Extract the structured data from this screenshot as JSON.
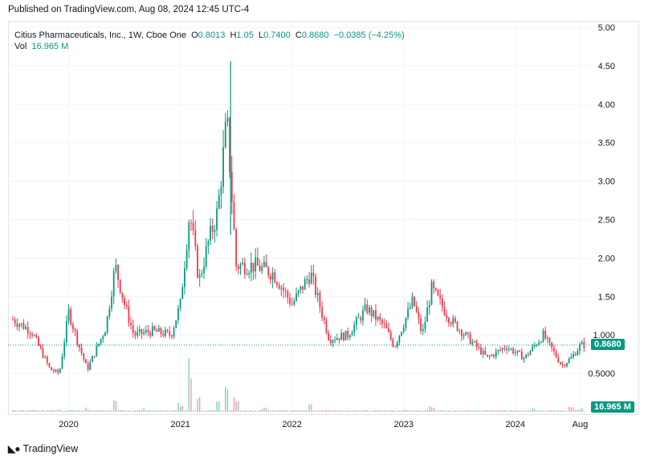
{
  "header": {
    "published": "Published on TradingView.com, Aug 08, 2024 12:45 UTC-4"
  },
  "legend": {
    "symbol": "Citius Pharmaceuticals, Inc., 1W, Cboe One",
    "o_label": "O",
    "o": "0.8013",
    "h_label": "H",
    "h": "1.05",
    "l_label": "L",
    "l": "0.7400",
    "c_label": "C",
    "c": "0.8680",
    "change": "−0.0385 (−4.25%)",
    "vol_label": "Vol",
    "vol": "16.965 M"
  },
  "price_badge": "0.8680",
  "volume_badge": "16.965 M",
  "footer": {
    "brand": "TradingView"
  },
  "colors": {
    "up": "#089981",
    "down": "#f23645",
    "grid": "#f0f3fa",
    "text": "#131722"
  },
  "chart_data": {
    "type": "candlestick",
    "ylim": [
      0.0,
      5.0
    ],
    "y_ticks": [
      "5.00",
      "4.50",
      "4.00",
      "3.50",
      "3.00",
      "2.50",
      "2.00",
      "1.50",
      "1.000",
      "0.5000"
    ],
    "x_ticks": [
      "2020",
      "2021",
      "2022",
      "2023",
      "2024",
      "Aug"
    ],
    "last_close": 0.868,
    "series": [
      {
        "name": "Price",
        "points": [
          {
            "t": "2019-07",
            "v": 1.2
          },
          {
            "t": "2019-09",
            "v": 1.05
          },
          {
            "t": "2019-11",
            "v": 0.55
          },
          {
            "t": "2019-12",
            "v": 0.5
          },
          {
            "t": "2020-01",
            "v": 1.3
          },
          {
            "t": "2020-02",
            "v": 0.9
          },
          {
            "t": "2020-03",
            "v": 0.55
          },
          {
            "t": "2020-05",
            "v": 1.1
          },
          {
            "t": "2020-06",
            "v": 1.9
          },
          {
            "t": "2020-07",
            "v": 1.4
          },
          {
            "t": "2020-08",
            "v": 1.0
          },
          {
            "t": "2020-10",
            "v": 1.05
          },
          {
            "t": "2020-12",
            "v": 1.0
          },
          {
            "t": "2021-01",
            "v": 1.4
          },
          {
            "t": "2021-02",
            "v": 2.6
          },
          {
            "t": "2021-03",
            "v": 1.7
          },
          {
            "t": "2021-04",
            "v": 2.2
          },
          {
            "t": "2021-05",
            "v": 2.6
          },
          {
            "t": "2021-06",
            "v": 3.8
          },
          {
            "t": "2021-07",
            "v": 1.9
          },
          {
            "t": "2021-09",
            "v": 1.9
          },
          {
            "t": "2021-11",
            "v": 1.8
          },
          {
            "t": "2022-01",
            "v": 1.4
          },
          {
            "t": "2022-02",
            "v": 1.6
          },
          {
            "t": "2022-03",
            "v": 1.8
          },
          {
            "t": "2022-05",
            "v": 0.95
          },
          {
            "t": "2022-07",
            "v": 1.0
          },
          {
            "t": "2022-09",
            "v": 1.35
          },
          {
            "t": "2022-11",
            "v": 1.1
          },
          {
            "t": "2022-12",
            "v": 0.85
          },
          {
            "t": "2023-02",
            "v": 1.45
          },
          {
            "t": "2023-03",
            "v": 1.0
          },
          {
            "t": "2023-04",
            "v": 1.6
          },
          {
            "t": "2023-06",
            "v": 1.2
          },
          {
            "t": "2023-08",
            "v": 0.95
          },
          {
            "t": "2023-10",
            "v": 0.7
          },
          {
            "t": "2023-12",
            "v": 0.85
          },
          {
            "t": "2024-02",
            "v": 0.7
          },
          {
            "t": "2024-04",
            "v": 1.0
          },
          {
            "t": "2024-06",
            "v": 0.6
          },
          {
            "t": "2024-07",
            "v": 0.7
          },
          {
            "t": "2024-08",
            "v": 0.868
          }
        ]
      },
      {
        "name": "Vol",
        "points": [
          {
            "t": "2019-08",
            "v": 0.02
          },
          {
            "t": "2019-12",
            "v": 0.03
          },
          {
            "t": "2020-03",
            "v": 0.05
          },
          {
            "t": "2020-06",
            "v": 0.22
          },
          {
            "t": "2020-09",
            "v": 0.04
          },
          {
            "t": "2021-01",
            "v": 0.1
          },
          {
            "t": "2021-02",
            "v": 0.65
          },
          {
            "t": "2021-03",
            "v": 0.2
          },
          {
            "t": "2021-05",
            "v": 0.12
          },
          {
            "t": "2021-06",
            "v": 0.35
          },
          {
            "t": "2021-07",
            "v": 0.2
          },
          {
            "t": "2021-10",
            "v": 0.05
          },
          {
            "t": "2022-03",
            "v": 0.08
          },
          {
            "t": "2022-09",
            "v": 0.03
          },
          {
            "t": "2023-01",
            "v": 0.03
          },
          {
            "t": "2023-04",
            "v": 0.06
          },
          {
            "t": "2023-10",
            "v": 0.02
          },
          {
            "t": "2024-03",
            "v": 0.04
          },
          {
            "t": "2024-07",
            "v": 0.08
          },
          {
            "t": "2024-08",
            "v": 0.05
          }
        ]
      }
    ]
  }
}
